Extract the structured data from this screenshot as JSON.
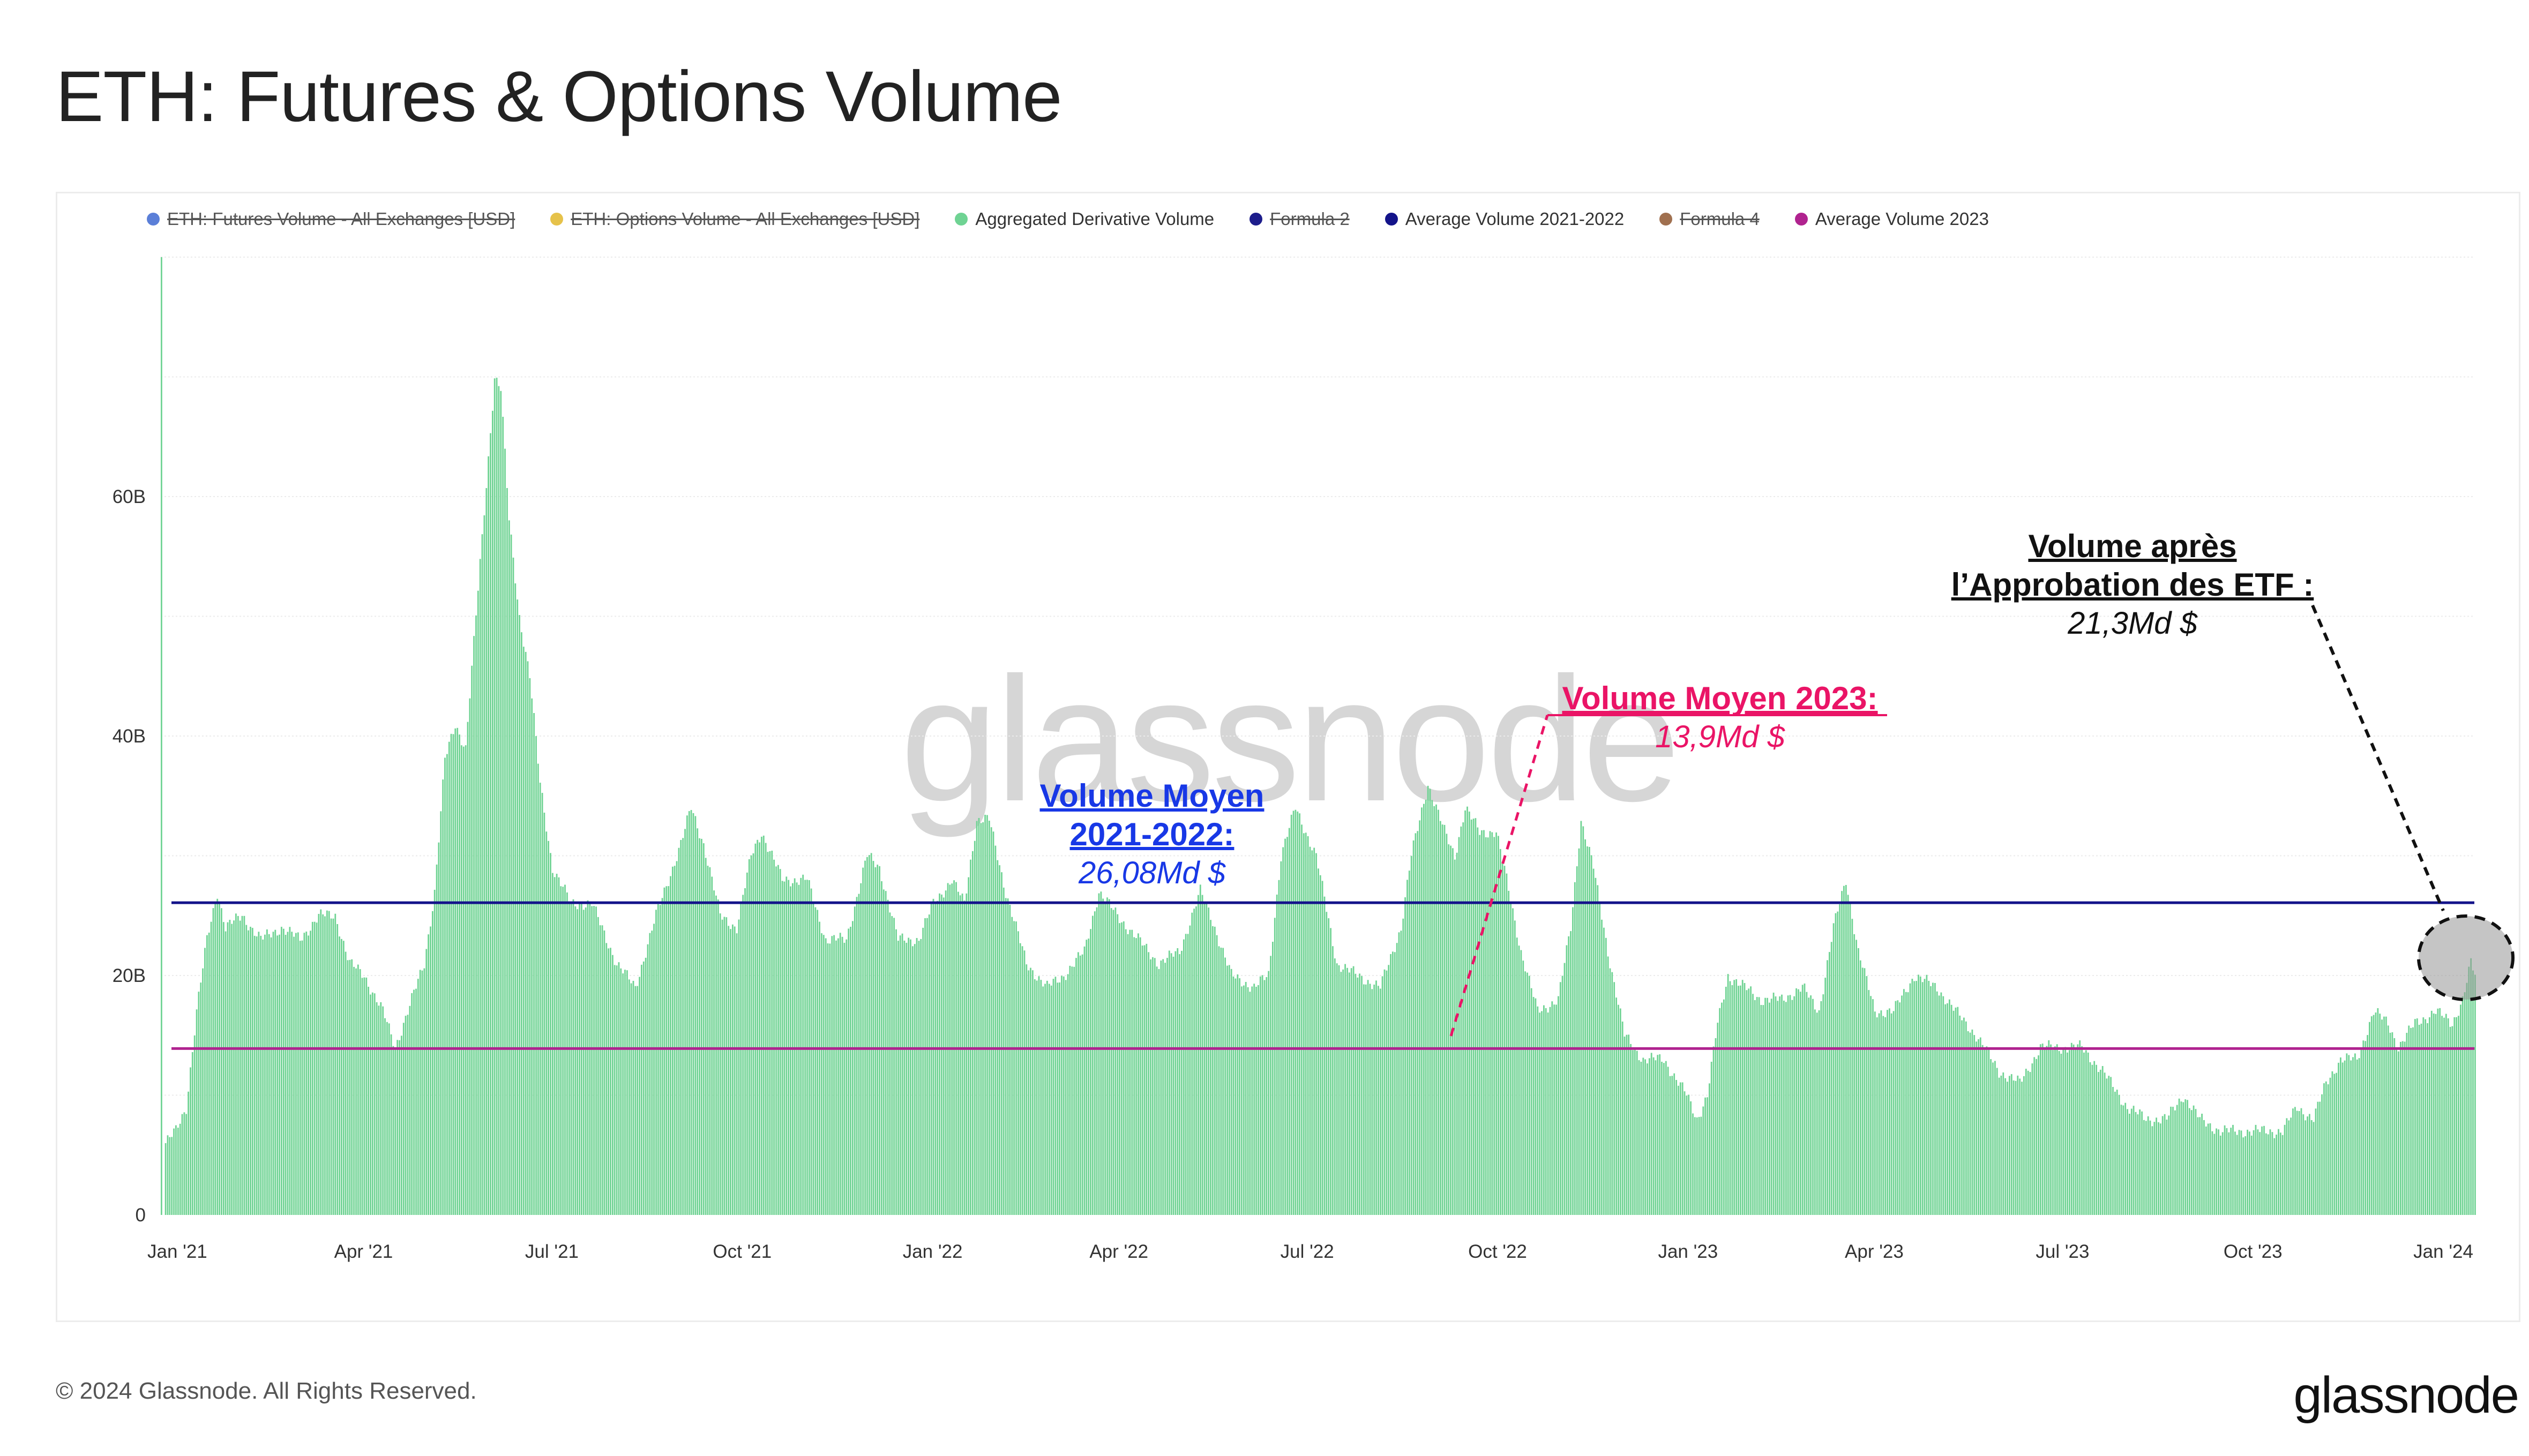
{
  "page": {
    "title": "ETH: Futures & Options Volume",
    "copyright": "© 2024 Glassnode. All Rights Reserved.",
    "logo_text": "glassnode",
    "watermark_text": "glassnode"
  },
  "legend": [
    {
      "label": "ETH: Futures Volume - All Exchanges [USD]",
      "color": "#5b7fd8",
      "struck": true
    },
    {
      "label": "ETH: Options Volume - All Exchanges [USD]",
      "color": "#e6c24a",
      "struck": true
    },
    {
      "label": "Aggregated Derivative Volume",
      "color": "#6fd393",
      "struck": false
    },
    {
      "label": "Formula 2",
      "color": "#1d1d8c",
      "struck": true
    },
    {
      "label": "Average Volume 2021-2022",
      "color": "#13138a",
      "struck": false
    },
    {
      "label": "Formula 4",
      "color": "#a0704f",
      "struck": true
    },
    {
      "label": "Average Volume 2023",
      "color": "#b0238f",
      "struck": false
    }
  ],
  "annotations": {
    "avg_2021_2022": {
      "heading_line1": "Volume Moyen",
      "heading_line2": "2021-2022:",
      "value": "26,08Md $"
    },
    "avg_2023": {
      "heading": "Volume Moyen 2023:",
      "value": "13,9Md $"
    },
    "etf": {
      "heading_line1": "Volume après",
      "heading_line2": "l’Approbation des ETF :",
      "value": "21,3Md $"
    }
  },
  "colors": {
    "bars": "#6fd393",
    "avg_2021_2022_line": "#13138a",
    "avg_2023_line": "#b0238f",
    "note_blue": "#1838e6",
    "note_pink": "#ea1466"
  },
  "chart_data": {
    "type": "bar",
    "x_range": [
      "2020-12-24",
      "2024-01-16"
    ],
    "ylim": [
      0,
      80
    ],
    "y_unit": "B",
    "y_ticks": [
      {
        "value": 0,
        "label": "0"
      },
      {
        "value": 20,
        "label": "20B"
      },
      {
        "value": 40,
        "label": "40B"
      },
      {
        "value": 60,
        "label": "60B"
      }
    ],
    "x_ticks": [
      {
        "date": "2021-01-01",
        "label": "Jan '21"
      },
      {
        "date": "2021-04-01",
        "label": "Apr '21"
      },
      {
        "date": "2021-07-01",
        "label": "Jul '21"
      },
      {
        "date": "2021-10-01",
        "label": "Oct '21"
      },
      {
        "date": "2022-01-01",
        "label": "Jan '22"
      },
      {
        "date": "2022-04-01",
        "label": "Apr '22"
      },
      {
        "date": "2022-07-01",
        "label": "Jul '22"
      },
      {
        "date": "2022-10-01",
        "label": "Oct '22"
      },
      {
        "date": "2023-01-01",
        "label": "Jan '23"
      },
      {
        "date": "2023-04-01",
        "label": "Apr '23"
      },
      {
        "date": "2023-07-01",
        "label": "Jul '23"
      },
      {
        "date": "2023-10-01",
        "label": "Oct '23"
      },
      {
        "date": "2024-01-01",
        "label": "Jan '24"
      }
    ],
    "series": [
      {
        "name": "Aggregated Derivative Volume",
        "unit": "B USD",
        "points": [
          [
            "2020-12-24",
            80
          ],
          [
            "2020-12-26",
            6
          ],
          [
            "2020-12-31",
            7
          ],
          [
            "2021-01-05",
            9
          ],
          [
            "2021-01-10",
            17
          ],
          [
            "2021-01-15",
            23
          ],
          [
            "2021-01-20",
            27
          ],
          [
            "2021-01-24",
            24
          ],
          [
            "2021-02-01",
            25
          ],
          [
            "2021-02-10",
            23
          ],
          [
            "2021-02-20",
            24
          ],
          [
            "2021-03-01",
            23
          ],
          [
            "2021-03-10",
            25
          ],
          [
            "2021-03-18",
            25
          ],
          [
            "2021-03-25",
            21
          ],
          [
            "2021-04-01",
            20
          ],
          [
            "2021-04-10",
            17
          ],
          [
            "2021-04-16",
            14
          ],
          [
            "2021-04-22",
            17
          ],
          [
            "2021-04-30",
            21
          ],
          [
            "2021-05-05",
            27
          ],
          [
            "2021-05-10",
            38
          ],
          [
            "2021-05-15",
            41
          ],
          [
            "2021-05-20",
            39
          ],
          [
            "2021-05-25",
            50
          ],
          [
            "2021-05-30",
            61
          ],
          [
            "2021-06-03",
            70
          ],
          [
            "2021-06-06",
            69
          ],
          [
            "2021-06-10",
            58
          ],
          [
            "2021-06-15",
            50
          ],
          [
            "2021-06-20",
            45
          ],
          [
            "2021-06-25",
            36
          ],
          [
            "2021-07-01",
            29
          ],
          [
            "2021-07-10",
            26
          ],
          [
            "2021-07-20",
            26
          ],
          [
            "2021-08-01",
            21
          ],
          [
            "2021-08-10",
            19
          ],
          [
            "2021-08-20",
            25
          ],
          [
            "2021-09-01",
            31
          ],
          [
            "2021-09-06",
            34
          ],
          [
            "2021-09-12",
            31
          ],
          [
            "2021-09-20",
            25
          ],
          [
            "2021-09-28",
            24
          ],
          [
            "2021-10-05",
            30
          ],
          [
            "2021-10-10",
            32
          ],
          [
            "2021-10-20",
            28
          ],
          [
            "2021-11-01",
            28
          ],
          [
            "2021-11-10",
            23
          ],
          [
            "2021-11-20",
            23
          ],
          [
            "2021-11-30",
            30
          ],
          [
            "2021-12-06",
            29
          ],
          [
            "2021-12-15",
            23
          ],
          [
            "2021-12-25",
            23
          ],
          [
            "2022-01-01",
            26
          ],
          [
            "2022-01-10",
            28
          ],
          [
            "2022-01-16",
            26
          ],
          [
            "2022-01-22",
            33
          ],
          [
            "2022-01-28",
            33
          ],
          [
            "2022-02-05",
            27
          ],
          [
            "2022-02-15",
            21
          ],
          [
            "2022-02-25",
            19
          ],
          [
            "2022-03-05",
            20
          ],
          [
            "2022-03-15",
            22
          ],
          [
            "2022-03-22",
            27
          ],
          [
            "2022-03-31",
            25
          ],
          [
            "2022-04-10",
            23
          ],
          [
            "2022-04-20",
            21
          ],
          [
            "2022-04-30",
            22
          ],
          [
            "2022-05-10",
            27
          ],
          [
            "2022-05-15",
            25
          ],
          [
            "2022-05-25",
            20
          ],
          [
            "2022-06-05",
            19
          ],
          [
            "2022-06-12",
            20
          ],
          [
            "2022-06-18",
            30
          ],
          [
            "2022-06-25",
            34
          ],
          [
            "2022-07-05",
            30
          ],
          [
            "2022-07-15",
            21
          ],
          [
            "2022-07-25",
            20
          ],
          [
            "2022-08-05",
            19
          ],
          [
            "2022-08-15",
            24
          ],
          [
            "2022-08-20",
            30
          ],
          [
            "2022-08-28",
            36
          ],
          [
            "2022-09-05",
            32
          ],
          [
            "2022-09-10",
            30
          ],
          [
            "2022-09-15",
            34
          ],
          [
            "2022-09-22",
            32
          ],
          [
            "2022-09-30",
            32
          ],
          [
            "2022-10-05",
            28
          ],
          [
            "2022-10-12",
            22
          ],
          [
            "2022-10-20",
            17
          ],
          [
            "2022-10-30",
            18
          ],
          [
            "2022-11-05",
            24
          ],
          [
            "2022-11-10",
            33
          ],
          [
            "2022-11-16",
            29
          ],
          [
            "2022-11-23",
            22
          ],
          [
            "2022-12-01",
            15
          ],
          [
            "2022-12-10",
            13
          ],
          [
            "2022-12-20",
            13
          ],
          [
            "2022-12-31",
            10
          ],
          [
            "2023-01-05",
            8
          ],
          [
            "2023-01-10",
            10
          ],
          [
            "2023-01-15",
            16
          ],
          [
            "2023-01-20",
            20
          ],
          [
            "2023-01-28",
            19
          ],
          [
            "2023-02-05",
            18
          ],
          [
            "2023-02-15",
            18
          ],
          [
            "2023-02-25",
            19
          ],
          [
            "2023-03-05",
            17
          ],
          [
            "2023-03-12",
            24
          ],
          [
            "2023-03-18",
            28
          ],
          [
            "2023-03-24",
            22
          ],
          [
            "2023-04-01",
            17
          ],
          [
            "2023-04-10",
            17
          ],
          [
            "2023-04-20",
            20
          ],
          [
            "2023-05-01",
            19
          ],
          [
            "2023-05-10",
            17
          ],
          [
            "2023-05-20",
            15
          ],
          [
            "2023-05-31",
            12
          ],
          [
            "2023-06-10",
            11
          ],
          [
            "2023-06-20",
            14
          ],
          [
            "2023-07-01",
            14
          ],
          [
            "2023-07-10",
            14
          ],
          [
            "2023-07-20",
            12
          ],
          [
            "2023-08-01",
            9
          ],
          [
            "2023-08-10",
            8
          ],
          [
            "2023-08-20",
            8
          ],
          [
            "2023-08-28",
            10
          ],
          [
            "2023-09-05",
            8
          ],
          [
            "2023-09-15",
            7
          ],
          [
            "2023-09-25",
            7
          ],
          [
            "2023-10-05",
            7
          ],
          [
            "2023-10-15",
            7
          ],
          [
            "2023-10-22",
            9
          ],
          [
            "2023-10-30",
            8
          ],
          [
            "2023-11-05",
            11
          ],
          [
            "2023-11-12",
            13
          ],
          [
            "2023-11-20",
            13
          ],
          [
            "2023-11-28",
            17
          ],
          [
            "2023-12-05",
            16
          ],
          [
            "2023-12-10",
            14
          ],
          [
            "2023-12-18",
            16
          ],
          [
            "2023-12-28",
            17
          ],
          [
            "2024-01-05",
            16
          ],
          [
            "2024-01-10",
            18
          ],
          [
            "2024-01-14",
            21
          ],
          [
            "2024-01-16",
            20
          ]
        ]
      }
    ],
    "reference_lines": [
      {
        "name": "Average Volume 2021-2022",
        "value": 26.08,
        "color": "#13138a"
      },
      {
        "name": "Average Volume 2023",
        "value": 13.9,
        "color": "#b0238f"
      }
    ]
  }
}
